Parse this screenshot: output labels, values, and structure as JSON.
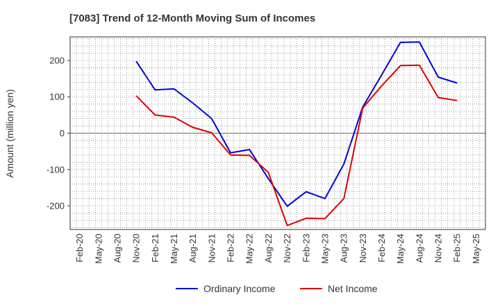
{
  "chart_data": {
    "type": "line",
    "title": "[7083]  Trend of 12-Month Moving Sum of Incomes",
    "xlabel": "",
    "ylabel": "Amount (million yen)",
    "categories": [
      "Feb-20",
      "May-20",
      "Aug-20",
      "Nov-20",
      "Feb-21",
      "May-21",
      "Aug-21",
      "Nov-21",
      "Feb-22",
      "May-22",
      "Aug-22",
      "Nov-22",
      "Feb-23",
      "May-23",
      "Aug-23",
      "Nov-23",
      "Feb-24",
      "May-24",
      "Aug-24",
      "Nov-24",
      "Feb-25",
      "May-25"
    ],
    "ylim": [
      -265,
      265
    ],
    "yticks": [
      -200,
      -100,
      0,
      100,
      200
    ],
    "grid": true,
    "legend_position": "bottom",
    "series": [
      {
        "name": "Ordinary Income",
        "color": "#0000dd",
        "values": [
          null,
          null,
          null,
          198,
          119,
          122,
          83,
          40,
          -54,
          -45,
          -125,
          -201,
          -161,
          -180,
          -85,
          72,
          160,
          250,
          251,
          154,
          138,
          null
        ]
      },
      {
        "name": "Net Income",
        "color": "#dd0000",
        "values": [
          null,
          null,
          null,
          103,
          50,
          44,
          16,
          1,
          -60,
          -61,
          -108,
          -254,
          -234,
          -235,
          -180,
          69,
          130,
          186,
          187,
          98,
          90,
          null
        ]
      }
    ]
  }
}
